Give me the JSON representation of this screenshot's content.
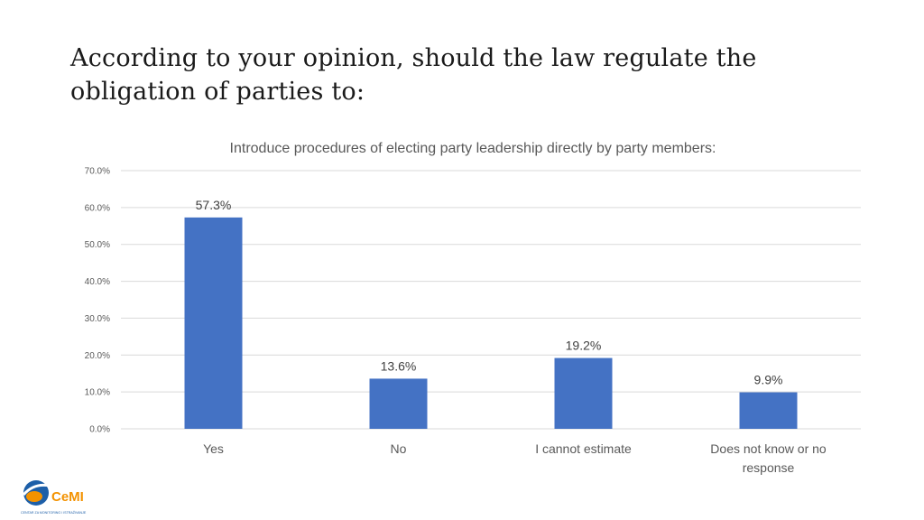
{
  "slide": {
    "title": "According to your opinion, should the law regulate the obligation of parties to:"
  },
  "chart_data": {
    "type": "bar",
    "title": "Introduce procedures of electing party leadership directly by party members:",
    "categories": [
      "Yes",
      "No",
      "I cannot estimate",
      "Does not know or no response"
    ],
    "values": [
      57.3,
      13.6,
      19.2,
      9.9
    ],
    "data_labels": [
      "57.3%",
      "13.6%",
      "19.2%",
      "9.9%"
    ],
    "ylim": [
      0,
      70
    ],
    "yticks": [
      0,
      10,
      20,
      30,
      40,
      50,
      60,
      70
    ],
    "ytick_labels": [
      "0.0%",
      "10.0%",
      "20.0%",
      "30.0%",
      "40.0%",
      "50.0%",
      "60.0%",
      "70.0%"
    ],
    "xlabel": "",
    "ylabel": "",
    "grid": true,
    "legend": "none",
    "bar_color": "#4472C4"
  },
  "logo": {
    "name": "CeMI",
    "subtext": "CENTAR ZA MONITORING I ISTRAŽIVANJE",
    "colors": {
      "orange": "#F39200",
      "blue": "#1D5FA8"
    }
  }
}
